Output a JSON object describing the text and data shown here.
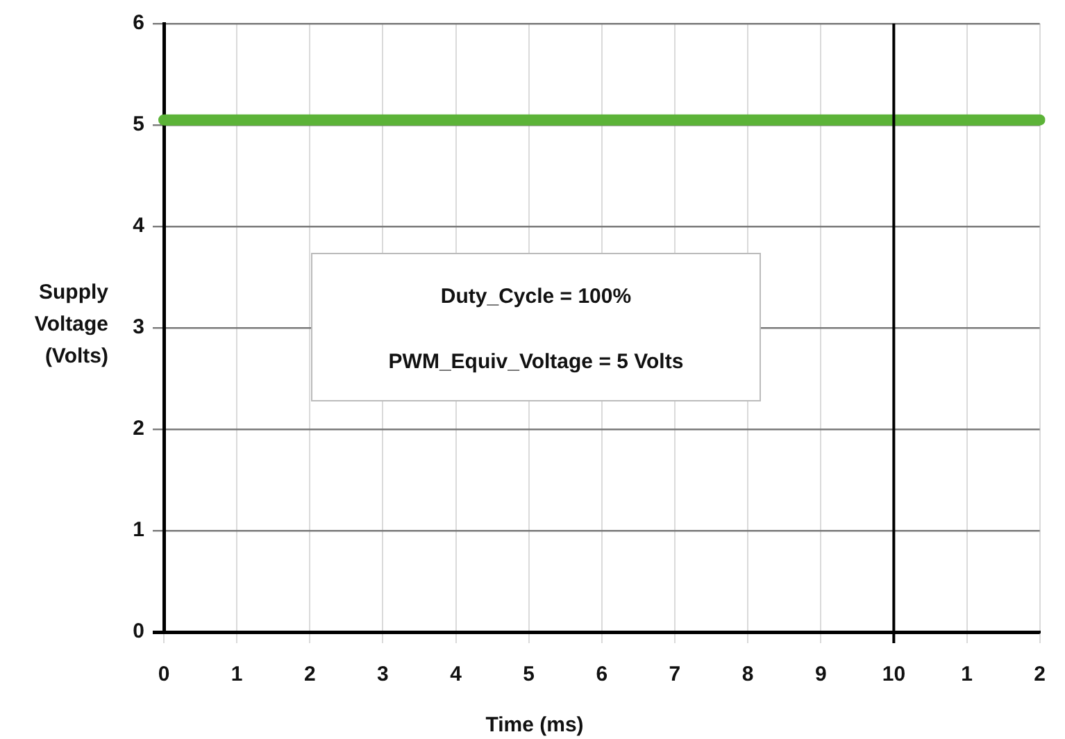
{
  "chart_data": {
    "type": "line",
    "xlabel": "Time (ms)",
    "ylabel": "Supply Voltage (Volts)",
    "categories": [
      "0",
      "1",
      "2",
      "3",
      "4",
      "5",
      "6",
      "7",
      "8",
      "9",
      "10",
      "1",
      "2"
    ],
    "series": [
      {
        "color": "#5cb338",
        "values": [
          5.05,
          5.05,
          5.05,
          5.05,
          5.05,
          5.05,
          5.05,
          5.05,
          5.05,
          5.05,
          5.05,
          5.05,
          5.05
        ]
      }
    ],
    "ylim": [
      0,
      6
    ],
    "yticks": [
      0,
      1,
      2,
      3,
      4,
      5,
      6
    ],
    "ref_lines": [
      {
        "axis": "x",
        "value": "10",
        "color": "#000000"
      }
    ],
    "annotations": [
      "Duty_Cycle = 100%",
      "PWM_Equiv_Voltage = 5 Volts"
    ],
    "grid": true,
    "legend": false,
    "marker": "none",
    "line_style": "solid"
  }
}
